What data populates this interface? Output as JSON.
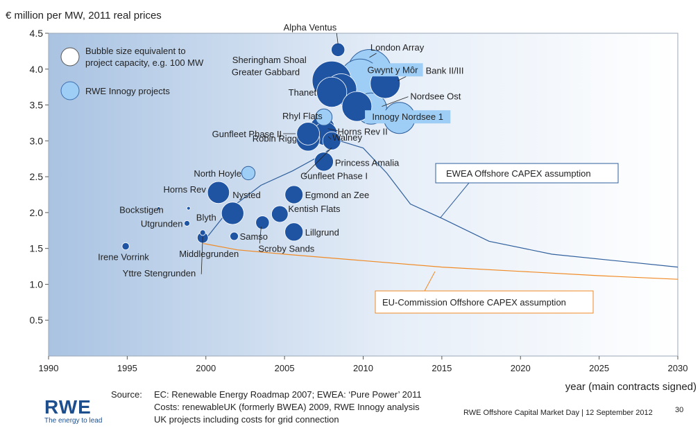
{
  "chart_data": {
    "type": "scatter",
    "title": "",
    "ylabel": "€ million per MW, 2011 real prices",
    "xlabel": "year (main contracts signed)",
    "xlim": [
      1990,
      2030
    ],
    "ylim": [
      0,
      4.5
    ],
    "xticks": [
      "1990",
      "1995",
      "2000",
      "2005",
      "2010",
      "2015",
      "2020",
      "2025",
      "2030"
    ],
    "yticks": [
      "0.5",
      "1.0",
      "1.5",
      "2.0",
      "2.5",
      "3.0",
      "3.5",
      "4.0",
      "4.5"
    ],
    "legend": [
      {
        "label": "Bubble size equivalent to project capacity, e.g. 100 MW",
        "color": "#ffffff"
      },
      {
        "label": "RWE Innogy projects",
        "color": "#9ecdf5"
      }
    ],
    "points": [
      {
        "name": "Alpha Ventus",
        "x": 2008.4,
        "y": 4.27,
        "size": 60,
        "rwe": false
      },
      {
        "name": "London Array",
        "x": 2010.4,
        "y": 3.97,
        "size": 630,
        "rwe": true
      },
      {
        "name": "Sheringham Shoal",
        "x": 2008.6,
        "y": 3.72,
        "size": 317,
        "rwe": false
      },
      {
        "name": "Thornton Bank II/III",
        "x": 2011.4,
        "y": 3.8,
        "size": 295,
        "rwe": false
      },
      {
        "name": "Greater Gabbard",
        "x": 2008.0,
        "y": 3.84,
        "size": 504,
        "rwe": false
      },
      {
        "name": "Gwynt y Môr",
        "x": 2009.8,
        "y": 3.85,
        "size": 576,
        "rwe": true
      },
      {
        "name": "Nordsee Ost",
        "x": 2009.6,
        "y": 3.48,
        "size": 295,
        "rwe": false
      },
      {
        "name": "Thanet",
        "x": 2008.0,
        "y": 3.68,
        "size": 300,
        "rwe": false
      },
      {
        "name": "Innogy Nordsee 1",
        "x": 2010.5,
        "y": 3.45,
        "size": 324,
        "rwe": true
      },
      {
        "name": "Innogy Nordsee 1",
        "x": 2012.3,
        "y": 3.32,
        "size": 324,
        "rwe": true
      },
      {
        "name": "Rhyl Flats",
        "x": 2007.5,
        "y": 3.33,
        "size": 90,
        "rwe": true
      },
      {
        "name": "Gunfleet Phase II",
        "x": 2006.5,
        "y": 3.1,
        "size": 173,
        "rwe": false
      },
      {
        "name": "Walney",
        "x": 2007.6,
        "y": 3.1,
        "size": 184,
        "rwe": false
      },
      {
        "name": "Robin Rigg",
        "x": 2006.5,
        "y": 3.02,
        "size": 180,
        "rwe": false
      },
      {
        "name": "Horns Rev II",
        "x": 2007.4,
        "y": 3.17,
        "size": 209,
        "rwe": false
      },
      {
        "name": "Princess Amalia",
        "x": 2007.5,
        "y": 2.71,
        "size": 120,
        "rwe": false
      },
      {
        "name": "North Hoyle",
        "x": 2002.7,
        "y": 2.55,
        "size": 60,
        "rwe": true
      },
      {
        "name": "Gunfleet Phase I",
        "x": 2008.0,
        "y": 3.0,
        "size": 108,
        "rwe": false
      },
      {
        "name": "Horns Rev",
        "x": 2000.8,
        "y": 2.28,
        "size": 160,
        "rwe": false
      },
      {
        "name": "Egmond an Zee",
        "x": 2005.6,
        "y": 2.25,
        "size": 108,
        "rwe": false
      },
      {
        "name": "Nysted",
        "x": 2001.7,
        "y": 1.99,
        "size": 166,
        "rwe": false
      },
      {
        "name": "Kentish Flats",
        "x": 2004.7,
        "y": 1.98,
        "size": 90,
        "rwe": false
      },
      {
        "name": "Bockstigen",
        "x": 1997.0,
        "y": 2.06,
        "size": 3,
        "rwe": false
      },
      {
        "name": "Blyth",
        "x": 1998.9,
        "y": 2.06,
        "size": 4,
        "rwe": false
      },
      {
        "name": "Utgrunden",
        "x": 1998.8,
        "y": 1.85,
        "size": 10,
        "rwe": false
      },
      {
        "name": "Samso",
        "x": 2001.8,
        "y": 1.67,
        "size": 23,
        "rwe": false
      },
      {
        "name": "Scroby Sands",
        "x": 2003.6,
        "y": 1.86,
        "size": 60,
        "rwe": false
      },
      {
        "name": "Lillgrund",
        "x": 2005.6,
        "y": 1.73,
        "size": 110,
        "rwe": false
      },
      {
        "name": "Irene Vorrink",
        "x": 1994.9,
        "y": 1.53,
        "size": 17,
        "rwe": false
      },
      {
        "name": "Yttre Stengrunden",
        "x": 1999.8,
        "y": 1.72,
        "size": 10,
        "rwe": false
      },
      {
        "name": "Middlegrunden",
        "x": 1999.8,
        "y": 1.65,
        "size": 40,
        "rwe": false
      }
    ],
    "series": [
      {
        "name": "EWEA Offshore CAPEX assumption",
        "x": [
          1999.8,
          2001.5,
          2003.5,
          2005.5,
          2007.5,
          2008.5,
          2010,
          2011.5,
          2013,
          2015,
          2018,
          2022,
          2026,
          2030
        ],
        "values": [
          1.58,
          2.05,
          2.38,
          2.58,
          2.82,
          3.0,
          2.9,
          2.55,
          2.12,
          1.92,
          1.6,
          1.42,
          1.33,
          1.24
        ],
        "color": "#2f5f9c"
      },
      {
        "name": "EU-Commission Offshore CAPEX assumption",
        "x": [
          1999.8,
          2002,
          2005,
          2010,
          2015,
          2020,
          2025,
          2030
        ],
        "values": [
          1.57,
          1.48,
          1.42,
          1.33,
          1.24,
          1.18,
          1.12,
          1.07
        ],
        "color": "#f08a24"
      }
    ]
  },
  "source": {
    "label": "Source:",
    "lines": [
      "EC: Renewable Energy Roadmap 2007; EWEA: ‘Pure Power’ 2011",
      "Costs: renewableUK (formerly BWEA) 2009, RWE Innogy analysis",
      "UK projects including costs for grid connection"
    ]
  },
  "footer": {
    "event": "RWE Offshore Capital Market Day | 12 September 2012",
    "page": "30",
    "brand": "RWE",
    "tagline": "The energy to lead"
  }
}
